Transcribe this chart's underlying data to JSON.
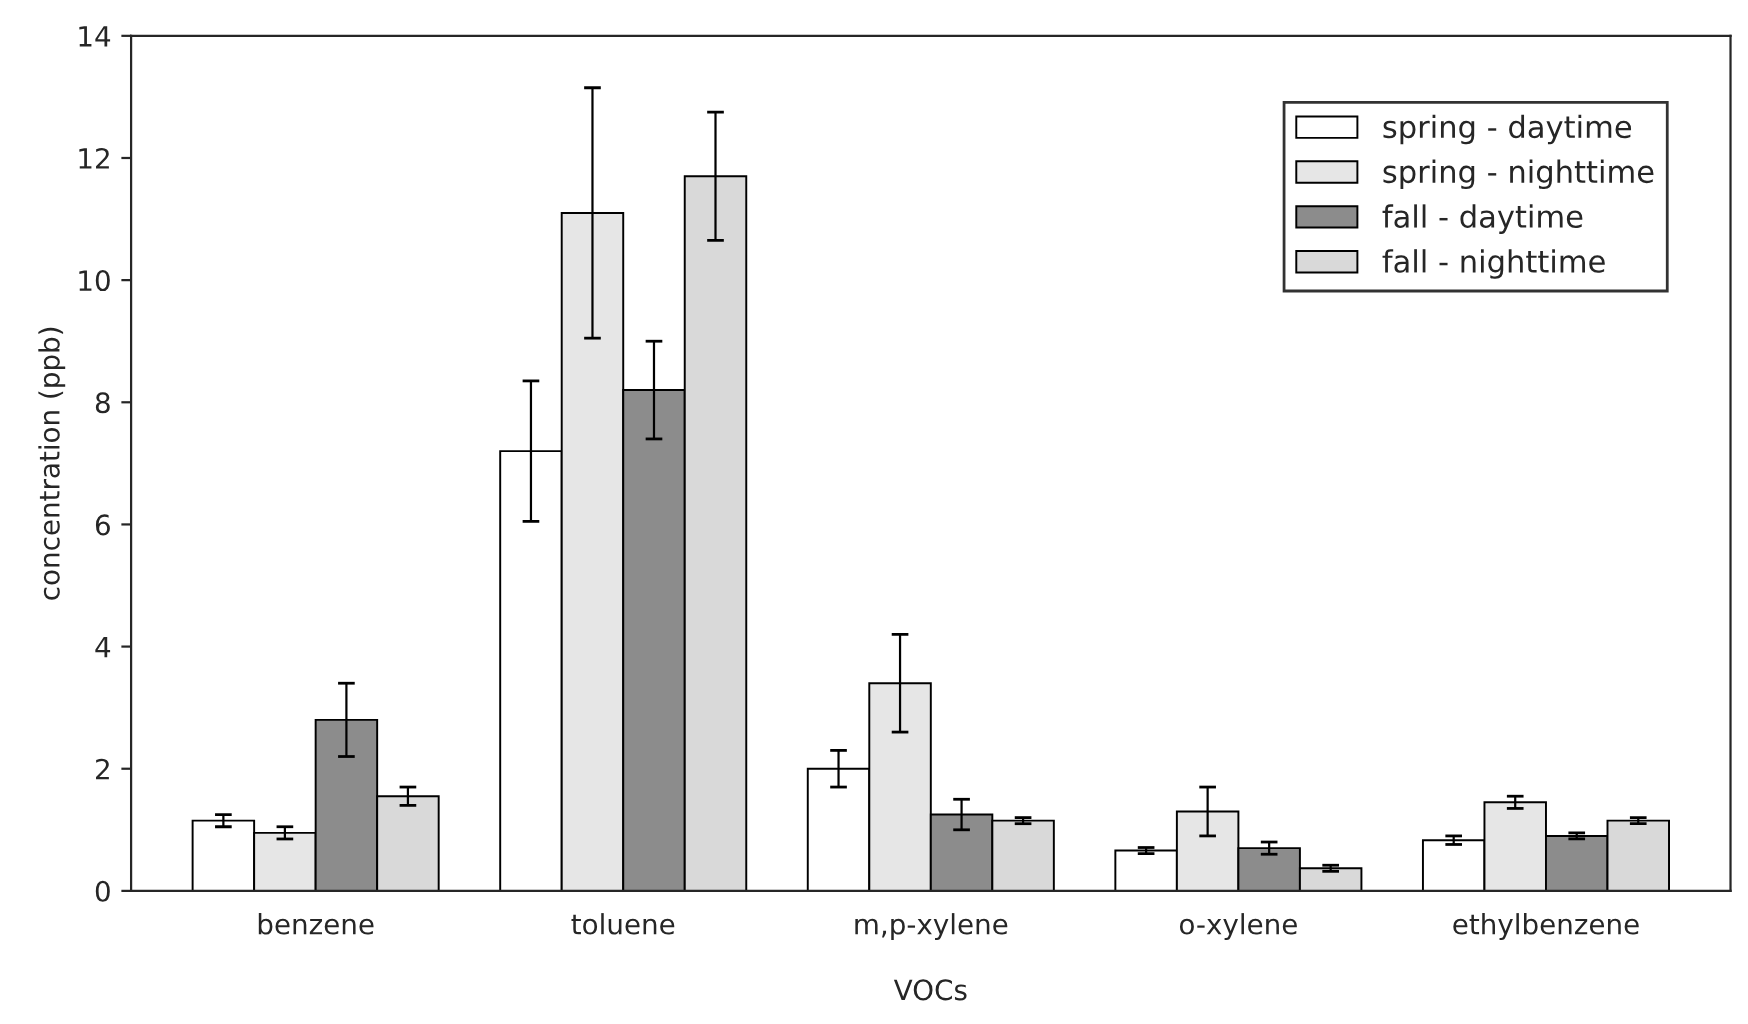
{
  "chart_data": {
    "type": "bar",
    "xlabel": "VOCs",
    "ylabel": "concentration (ppb)",
    "categories": [
      "benzene",
      "toluene",
      "m,p-xylene",
      "o-xylene",
      "ethylbenzene"
    ],
    "series": [
      {
        "name": "spring - daytime",
        "color": "#ffffff",
        "values": [
          1.15,
          7.2,
          2.0,
          0.66,
          0.83
        ],
        "errors": [
          0.1,
          1.15,
          0.3,
          0.05,
          0.07
        ]
      },
      {
        "name": "spring - nighttime",
        "color": "#e6e6e6",
        "values": [
          0.95,
          11.1,
          3.4,
          1.3,
          1.45
        ],
        "errors": [
          0.1,
          2.05,
          0.8,
          0.4,
          0.1
        ]
      },
      {
        "name": "fall - daytime",
        "color": "#8c8c8c",
        "values": [
          2.8,
          8.2,
          1.25,
          0.7,
          0.9
        ],
        "errors": [
          0.6,
          0.8,
          0.25,
          0.1,
          0.05
        ]
      },
      {
        "name": "fall - nighttime",
        "color": "#d9d9d9",
        "values": [
          1.55,
          11.7,
          1.15,
          0.37,
          1.15
        ],
        "errors": [
          0.15,
          1.05,
          0.05,
          0.05,
          0.05
        ]
      }
    ],
    "ylim": [
      0,
      14
    ],
    "yticks": [
      0,
      2,
      4,
      6,
      8,
      10,
      12,
      14
    ],
    "grid": false,
    "legend": "top right"
  }
}
